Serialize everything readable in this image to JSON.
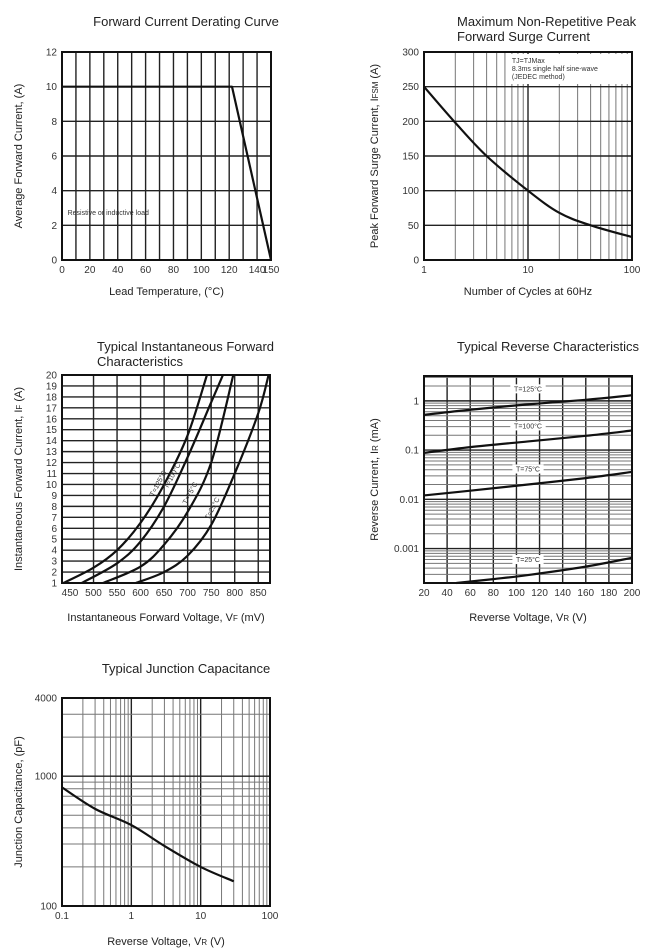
{
  "colors": {
    "curve": "#111111",
    "grid_major": "#222222",
    "grid_minor": "#777777",
    "frame": "#111111"
  },
  "chart_data": [
    {
      "id": "derating",
      "type": "line",
      "title": [
        "Forward Current Derating Curve"
      ],
      "xlabel": "Lead Temperature, (°C)",
      "ylabel": "Average Forward Current, (A)",
      "xscale": "linear",
      "yscale": "linear",
      "xlim": [
        0,
        150
      ],
      "ylim": [
        0,
        12
      ],
      "xticks": [
        0,
        20,
        40,
        60,
        80,
        100,
        120,
        140,
        150
      ],
      "yticks": [
        0,
        2,
        4,
        6,
        8,
        10,
        12
      ],
      "xgrid": [
        10,
        20,
        30,
        40,
        50,
        60,
        70,
        80,
        90,
        100,
        110,
        120,
        130,
        140
      ],
      "ygrid": [
        2,
        4,
        6,
        8,
        10
      ],
      "grid": true,
      "annotations": [
        "Resistive or inductive load"
      ],
      "series": [
        {
          "x": [
            0,
            122,
            150
          ],
          "y": [
            10,
            10,
            0
          ],
          "smooth": false
        }
      ]
    },
    {
      "id": "surge",
      "type": "line",
      "title": [
        "Maximum Non-Repetitive Peak",
        "Forward Surge Current"
      ],
      "xlabel": "Number of Cycles at 60Hz",
      "ylabel": "Peak Forward Surge Current, IFSM (A)",
      "ylabel_sub": "FSM",
      "xscale": "log",
      "yscale": "linear",
      "xlim": [
        1,
        100
      ],
      "ylim": [
        0,
        300
      ],
      "xticks": [
        1,
        10,
        100
      ],
      "yticks": [
        0,
        50,
        100,
        150,
        200,
        250,
        300
      ],
      "xgrid": [
        2,
        3,
        4,
        5,
        6,
        7,
        8,
        9,
        10,
        20,
        30,
        40,
        50,
        60,
        70,
        80,
        90
      ],
      "ygrid": [
        50,
        100,
        150,
        200,
        250
      ],
      "grid": true,
      "annotations": [
        "TJ=TJMax",
        "8.3ms single half sine-wave",
        "(JEDEC method)"
      ],
      "series": [
        {
          "x": [
            1,
            2,
            4,
            10,
            20,
            40,
            100
          ],
          "y": [
            250,
            198,
            150,
            100,
            68,
            50,
            33
          ],
          "smooth": true
        }
      ]
    },
    {
      "id": "forward",
      "type": "line",
      "title": [
        "Typical Instantaneous Forward",
        "Characteristics"
      ],
      "xlabel": "Instantaneous Forward Voltage, VF (mV)",
      "xlabel_sub": "F",
      "ylabel": "Instantaneous Forward Current, IF (A)",
      "ylabel_sub": "F",
      "xscale": "linear",
      "yscale": "linear",
      "xlim": [
        433,
        875
      ],
      "ylim": [
        1,
        20
      ],
      "xticks": [
        450,
        500,
        550,
        600,
        650,
        700,
        750,
        800,
        850
      ],
      "yticks": [
        1,
        2,
        3,
        4,
        5,
        6,
        7,
        8,
        9,
        10,
        11,
        12,
        13,
        14,
        15,
        16,
        17,
        18,
        19,
        20
      ],
      "xgrid": [
        500,
        550,
        600,
        650,
        700,
        750,
        800,
        850
      ],
      "ygrid": [
        2,
        3,
        4,
        5,
        6,
        7,
        8,
        9,
        10,
        11,
        12,
        13,
        14,
        15,
        16,
        17,
        18,
        19
      ],
      "grid": true,
      "series": [
        {
          "name": "T=125°C",
          "x": [
            436,
            500,
            550,
            600,
            650,
            700,
            741
          ],
          "y": [
            1,
            2.4,
            4,
            6.5,
            10,
            14.5,
            20
          ],
          "smooth": true,
          "label_at": 650
        },
        {
          "name": "T=100°C",
          "x": [
            475,
            550,
            600,
            650,
            700,
            750,
            775
          ],
          "y": [
            1,
            2.8,
            4.8,
            8,
            12.5,
            17.5,
            20
          ],
          "smooth": true,
          "label_at": 680
        },
        {
          "name": "T=75°C",
          "x": [
            520,
            600,
            650,
            700,
            750,
            797
          ],
          "y": [
            1,
            2.5,
            4.5,
            7.5,
            12,
            20
          ],
          "smooth": true,
          "label_at": 718
        },
        {
          "name": "T=25°C",
          "x": [
            590,
            650,
            700,
            750,
            800,
            850,
            872
          ],
          "y": [
            1,
            2,
            3.5,
            6.3,
            11,
            16.5,
            20
          ],
          "smooth": true,
          "label_at": 765
        }
      ]
    },
    {
      "id": "reverse",
      "type": "line",
      "title": [
        "Typical Reverse Characteristics"
      ],
      "xlabel": "Reverse Voltage, VR (V)",
      "xlabel_sub": "R",
      "ylabel": "Reverse Current, IR (mA)",
      "ylabel_sub": "R",
      "xscale": "linear",
      "yscale": "log",
      "xlim": [
        20,
        200
      ],
      "ylim": [
        0.0002,
        3.2
      ],
      "xticks": [
        20,
        40,
        60,
        80,
        100,
        120,
        140,
        160,
        180,
        200
      ],
      "yticks": [
        0.001,
        0.01,
        0.1,
        1
      ],
      "xgrid": [
        40,
        60,
        80,
        100,
        120,
        140,
        160,
        180
      ],
      "ygrid": [
        0.0003,
        0.0004,
        0.0005,
        0.0006,
        0.0007,
        0.0008,
        0.0009,
        0.001,
        0.002,
        0.003,
        0.004,
        0.005,
        0.006,
        0.007,
        0.008,
        0.009,
        0.01,
        0.02,
        0.03,
        0.04,
        0.05,
        0.06,
        0.07,
        0.08,
        0.09,
        0.1,
        0.2,
        0.3,
        0.4,
        0.5,
        0.6,
        0.7,
        0.8,
        0.9,
        1,
        2,
        3
      ],
      "grid": true,
      "series": [
        {
          "name": "T=125°C",
          "x": [
            20,
            60,
            110,
            160,
            200
          ],
          "y": [
            0.52,
            0.66,
            0.85,
            1.05,
            1.3
          ],
          "smooth": true,
          "label_at": 110
        },
        {
          "name": "T=100°C",
          "x": [
            20,
            60,
            110,
            160,
            200
          ],
          "y": [
            0.088,
            0.115,
            0.15,
            0.195,
            0.25
          ],
          "smooth": true,
          "label_at": 110
        },
        {
          "name": "T=75°C",
          "x": [
            20,
            60,
            110,
            160,
            200
          ],
          "y": [
            0.012,
            0.015,
            0.02,
            0.027,
            0.036
          ],
          "smooth": true,
          "label_at": 110
        },
        {
          "name": "T=25°C",
          "x": [
            48,
            80,
            110,
            160,
            200
          ],
          "y": [
            0.0002,
            0.00024,
            0.00029,
            0.00043,
            0.00065
          ],
          "smooth": true,
          "label_at": 110
        }
      ]
    },
    {
      "id": "capacitance",
      "type": "line",
      "title": [
        "Typical Junction Capacitance"
      ],
      "xlabel": "Reverse Voltage, VR (V)",
      "xlabel_sub": "R",
      "ylabel": "Junction Capacitance, (pF)",
      "xscale": "log",
      "yscale": "log",
      "xlim": [
        0.1,
        100
      ],
      "ylim": [
        100,
        4000
      ],
      "xticks": [
        0.1,
        1,
        10,
        100
      ],
      "yticks": [
        100,
        1000,
        4000
      ],
      "xgrid": [
        0.2,
        0.3,
        0.4,
        0.5,
        0.6,
        0.7,
        0.8,
        0.9,
        1,
        2,
        3,
        4,
        5,
        6,
        7,
        8,
        9,
        10,
        20,
        30,
        40,
        50,
        60,
        70,
        80,
        90
      ],
      "ygrid": [
        200,
        300,
        400,
        500,
        600,
        700,
        800,
        900,
        1000,
        2000,
        3000
      ],
      "grid": true,
      "series": [
        {
          "x": [
            0.1,
            0.3,
            1,
            3,
            10,
            30
          ],
          "y": [
            820,
            560,
            420,
            290,
            200,
            155
          ],
          "smooth": true
        }
      ]
    }
  ]
}
